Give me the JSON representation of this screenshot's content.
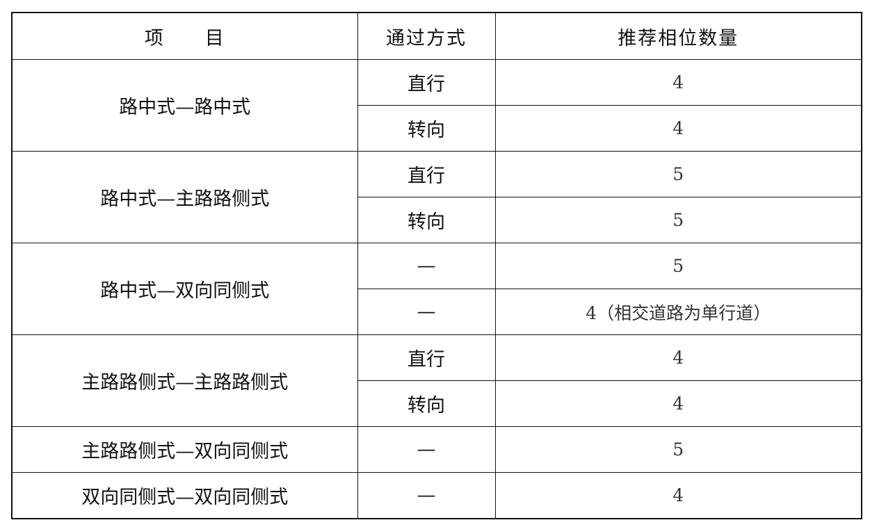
{
  "headers": [
    "项　　目",
    "通过方式",
    "推荐相位数量"
  ],
  "groups": [
    {
      "item": "路中式—路中式",
      "rows": [
        {
          "mode": "直行",
          "count": "4"
        },
        {
          "mode": "转向",
          "count": "4"
        }
      ]
    },
    {
      "item": "路中式—主路路侧式",
      "rows": [
        {
          "mode": "直行",
          "count": "5"
        },
        {
          "mode": "转向",
          "count": "5"
        }
      ]
    },
    {
      "item": "路中式—双向同侧式",
      "rows": [
        {
          "mode": "—",
          "count": "5"
        },
        {
          "mode": "—",
          "count": "4（相交道路为单行道）"
        }
      ]
    },
    {
      "item": "主路路侧式—主路路侧式",
      "rows": [
        {
          "mode": "直行",
          "count": "4"
        },
        {
          "mode": "转向",
          "count": "4"
        }
      ]
    },
    {
      "item": "主路路侧式—双向同侧式",
      "rows": [
        {
          "mode": "—",
          "count": "5"
        }
      ]
    },
    {
      "item": "双向同侧式—双向同侧式",
      "rows": [
        {
          "mode": "—",
          "count": "4"
        }
      ]
    }
  ]
}
